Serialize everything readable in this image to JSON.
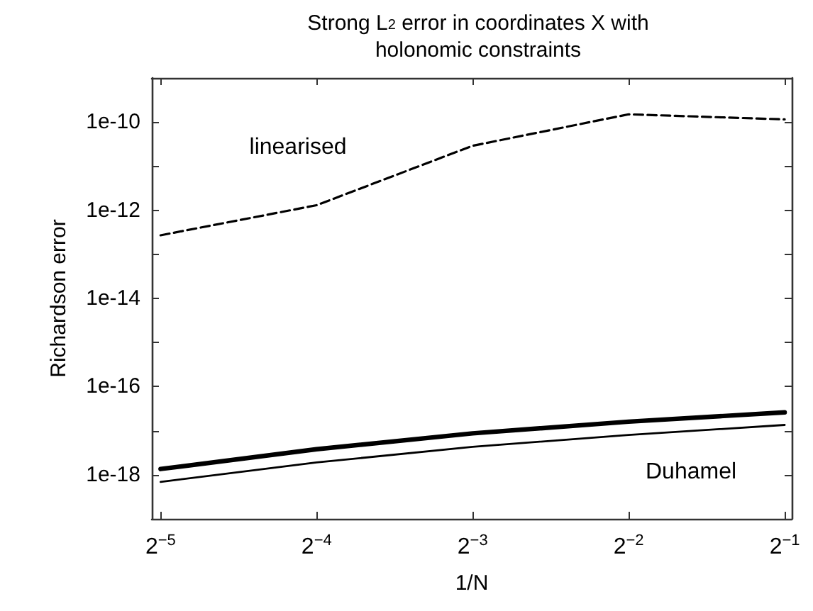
{
  "chart_data": {
    "type": "line",
    "title": "Strong L$_{2}$ error in coordinates X with\nholonomic constraints",
    "xlabel": "1/N",
    "ylabel": "Richardson error",
    "log": "xy",
    "x": [
      0.03125,
      0.0625,
      0.125,
      0.25,
      0.5
    ],
    "series": [
      {
        "color": "#000000",
        "line_style": "dashed",
        "values": [
          2.7e-13,
          1.3e-12,
          2.9e-11,
          1.5e-10,
          1.15e-10
        ]
      },
      {
        "color": "#000000",
        "line_style": "solid",
        "values": [
          1.35e-18,
          3.8e-18,
          8.7e-18,
          1.6e-17,
          2.6e-17
        ]
      },
      {
        "color": "#000000",
        "line_style": "solid",
        "values": [
          6.9e-19,
          1.9e-18,
          4.3e-18,
          8e-18,
          1.35e-17
        ]
      }
    ],
    "xlim": [
      0.03006,
      0.5159
    ],
    "xticks": [
      {
        "value": 0.03125,
        "label": "2$^{−5}$"
      },
      {
        "value": 0.0625,
        "label": "2$^{−4}$"
      },
      {
        "value": 0.125,
        "label": "2$^{−3}$"
      },
      {
        "value": 0.25,
        "label": "2$^{−2}$"
      },
      {
        "value": 0.5,
        "label": "2$^{−1}$"
      }
    ],
    "ylim": [
      1e-19,
      1e-09
    ],
    "yticks": [
      {
        "value": 1e-19,
        "label": null
      },
      {
        "value": 1e-18,
        "label": "1e-18"
      },
      {
        "value": 1e-17,
        "label": null
      },
      {
        "value": 1e-16,
        "label": "1e-16"
      },
      {
        "value": 1e-15,
        "label": null
      },
      {
        "value": 1e-14,
        "label": "1e-14"
      },
      {
        "value": 1e-13,
        "label": null
      },
      {
        "value": 1e-12,
        "label": "1e-12"
      },
      {
        "value": 1e-11,
        "label": null
      },
      {
        "value": 1e-10,
        "label": "1e-10"
      },
      {
        "value": 1e-09,
        "label": null
      }
    ],
    "annotations": [
      "linearised",
      "Duhamel"
    ],
    "marker": "none",
    "grid": false
  }
}
